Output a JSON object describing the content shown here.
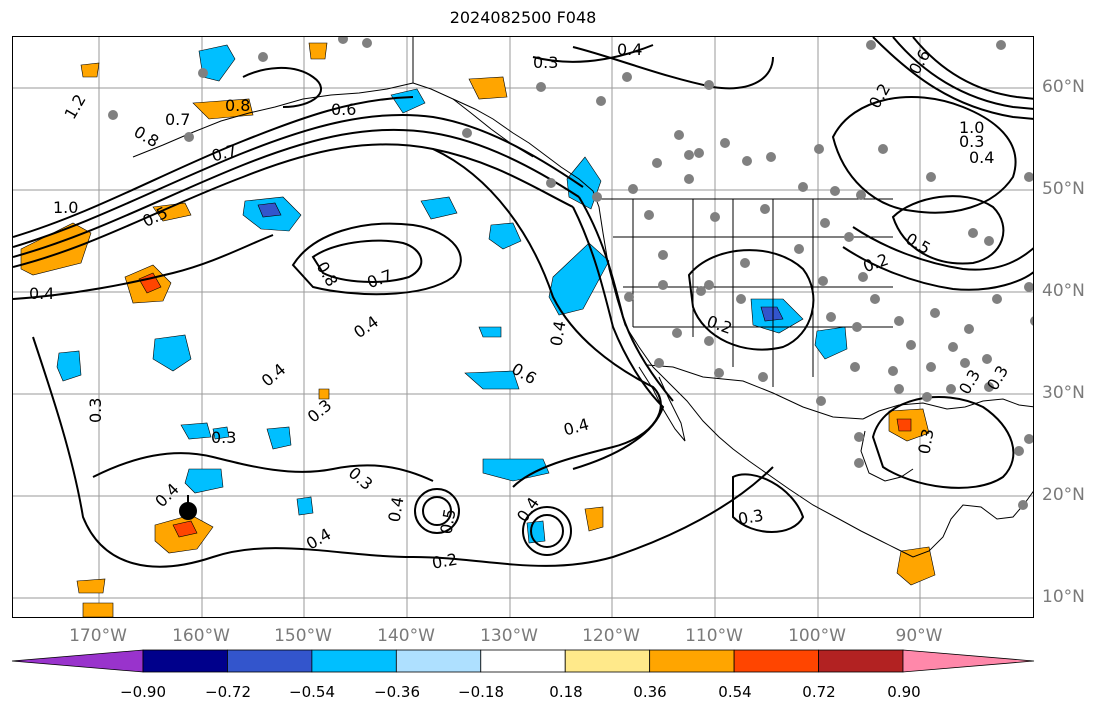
{
  "title": "2024082500 F048",
  "map": {
    "longitude_labels": [
      "170°W",
      "160°W",
      "150°W",
      "140°W",
      "130°W",
      "120°W",
      "110°W",
      "100°W",
      "90°W"
    ],
    "latitude_labels": [
      "60°N",
      "50°N",
      "40°N",
      "30°N",
      "20°N",
      "10°N"
    ],
    "contour_labels": [
      "0.4",
      "0.3",
      "1.2",
      "0.7",
      "0.8",
      "0.6",
      "0.8",
      "0.7",
      "1.0",
      "0.5",
      "0.4",
      "0.8",
      "0.7",
      "0.4",
      "0.4",
      "0.3",
      "0.6",
      "0.4",
      "0.3",
      "0.3",
      "0.4",
      "0.3",
      "0.4",
      "0.5",
      "0.4",
      "0.2",
      "0.4",
      "0.3",
      "0.2",
      "0.3",
      "0.2",
      "0.5",
      "0.3",
      "0.3",
      "0.4",
      "0.2",
      "0.6",
      "0.3",
      "1.0",
      "0.4"
    ],
    "colors": {
      "grid": "#9a9a9a",
      "coast": "#000000",
      "contour": "#000000",
      "station_dot": "#808080",
      "axis_label": "#7a7a7a"
    }
  },
  "colorbar": {
    "ticks": [
      "−0.90",
      "−0.72",
      "−0.54",
      "−0.36",
      "−0.18",
      "0.18",
      "0.36",
      "0.54",
      "0.72",
      "0.90"
    ],
    "colors": [
      "#9933cc",
      "#00008b",
      "#3355cc",
      "#00bfff",
      "#aee0ff",
      "#ffffff",
      "#ffe98a",
      "#ffa500",
      "#ff4500",
      "#b22222",
      "#ff88aa"
    ]
  }
}
